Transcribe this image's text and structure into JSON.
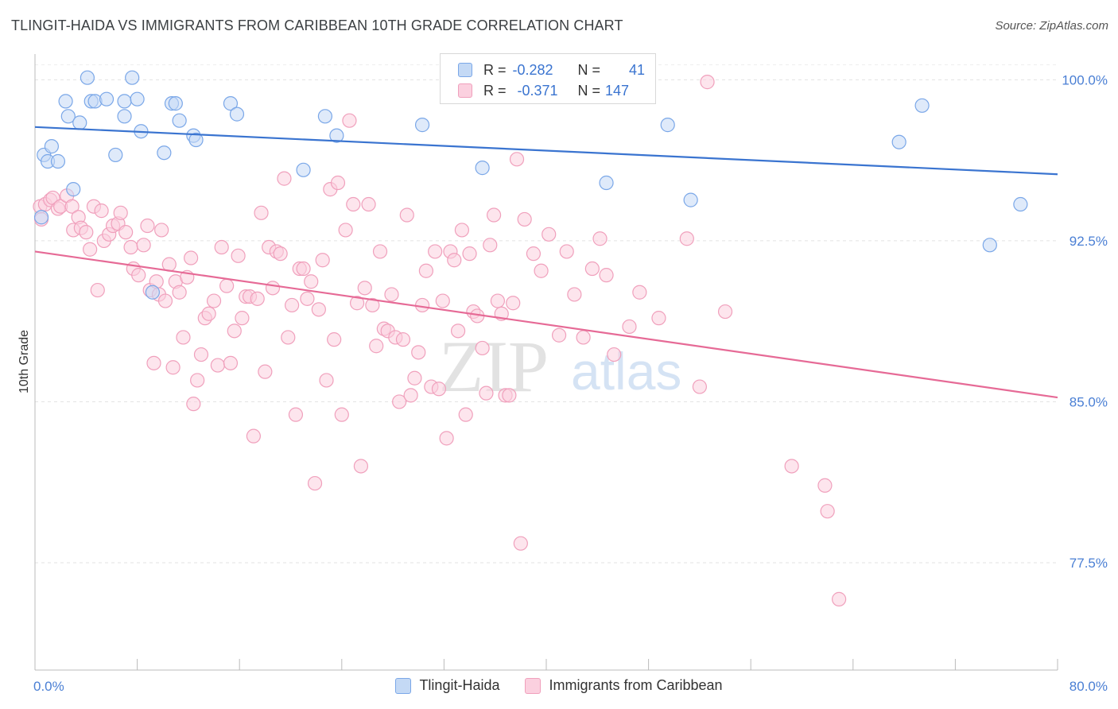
{
  "title": "TLINGIT-HAIDA VS IMMIGRANTS FROM CARIBBEAN 10TH GRADE CORRELATION CHART",
  "source": "Source: ZipAtlas.com",
  "watermark": {
    "zip": "ZIP",
    "atlas": "atlas"
  },
  "legend": {
    "r_label": "R =",
    "n_label": "N =",
    "rows": [
      {
        "r": "-0.282",
        "n": "41",
        "color": "#7aa7e8",
        "fill": "#c4d9f5"
      },
      {
        "r": "-0.371",
        "n": "147",
        "color": "#f0a0bc",
        "fill": "#fbd0df"
      }
    ]
  },
  "chart_data": {
    "type": "scatter",
    "title": "TLINGIT-HAIDA VS IMMIGRANTS FROM CARIBBEAN 10TH GRADE CORRELATION CHART",
    "xlabel": "",
    "ylabel": "10th Grade",
    "xlim": [
      0,
      80
    ],
    "ylim": [
      72.5,
      101.2
    ],
    "x_tick_labels": [
      "0.0%",
      "80.0%"
    ],
    "y_ticks": [
      77.5,
      85.0,
      92.5,
      100.0
    ],
    "y_tick_labels": [
      "77.5%",
      "85.0%",
      "92.5%",
      "100.0%"
    ],
    "grid": true,
    "legend_placement": "bottom",
    "series": [
      {
        "name": "Tlingit-Haida",
        "color": "#7aa7e8",
        "fill": "#c4d9f5",
        "trend": [
          [
            0,
            97.8
          ],
          [
            80,
            95.6
          ]
        ],
        "points": [
          [
            0.5,
            93.6
          ],
          [
            0.7,
            96.5
          ],
          [
            1.0,
            96.2
          ],
          [
            1.3,
            96.9
          ],
          [
            1.8,
            96.2
          ],
          [
            2.4,
            99.0
          ],
          [
            2.6,
            98.3
          ],
          [
            3.0,
            94.9
          ],
          [
            3.5,
            98.0
          ],
          [
            4.1,
            100.1
          ],
          [
            4.4,
            99.0
          ],
          [
            4.7,
            99.0
          ],
          [
            5.6,
            99.1
          ],
          [
            6.3,
            96.5
          ],
          [
            7.0,
            99.0
          ],
          [
            7.0,
            98.3
          ],
          [
            7.6,
            100.1
          ],
          [
            8.0,
            99.1
          ],
          [
            8.3,
            97.6
          ],
          [
            9.2,
            90.1
          ],
          [
            10.1,
            96.6
          ],
          [
            10.7,
            98.9
          ],
          [
            11.0,
            98.9
          ],
          [
            11.3,
            98.1
          ],
          [
            12.4,
            97.4
          ],
          [
            12.6,
            97.2
          ],
          [
            15.3,
            98.9
          ],
          [
            15.8,
            98.4
          ],
          [
            21.0,
            95.8
          ],
          [
            22.7,
            98.3
          ],
          [
            23.6,
            97.4
          ],
          [
            30.3,
            97.9
          ],
          [
            35.0,
            95.9
          ],
          [
            36.6,
            100.1
          ],
          [
            44.7,
            95.2
          ],
          [
            49.5,
            97.9
          ],
          [
            51.3,
            94.4
          ],
          [
            67.6,
            97.1
          ],
          [
            69.4,
            98.8
          ],
          [
            77.1,
            94.2
          ],
          [
            74.7,
            92.3
          ]
        ]
      },
      {
        "name": "Immigrants from Caribbean",
        "color": "#f0a0bc",
        "fill": "#fbd0df",
        "trend": [
          [
            0,
            92.0
          ],
          [
            80,
            85.2
          ]
        ],
        "points": [
          [
            0.4,
            94.1
          ],
          [
            0.5,
            93.5
          ],
          [
            0.8,
            94.2
          ],
          [
            1.2,
            94.4
          ],
          [
            1.4,
            94.5
          ],
          [
            1.8,
            94.0
          ],
          [
            2.0,
            94.1
          ],
          [
            2.5,
            94.6
          ],
          [
            2.9,
            94.1
          ],
          [
            3.0,
            93.0
          ],
          [
            3.4,
            93.6
          ],
          [
            3.6,
            93.1
          ],
          [
            4.0,
            92.9
          ],
          [
            4.3,
            92.1
          ],
          [
            4.6,
            94.1
          ],
          [
            4.9,
            90.2
          ],
          [
            5.2,
            93.9
          ],
          [
            5.4,
            92.5
          ],
          [
            5.8,
            92.8
          ],
          [
            6.1,
            93.2
          ],
          [
            6.5,
            93.3
          ],
          [
            6.7,
            93.8
          ],
          [
            7.1,
            92.9
          ],
          [
            7.5,
            92.2
          ],
          [
            7.7,
            91.2
          ],
          [
            8.1,
            90.9
          ],
          [
            8.5,
            92.3
          ],
          [
            8.8,
            93.2
          ],
          [
            9.0,
            90.2
          ],
          [
            9.3,
            86.8
          ],
          [
            9.5,
            90.6
          ],
          [
            9.7,
            90.0
          ],
          [
            9.9,
            93.0
          ],
          [
            10.2,
            89.7
          ],
          [
            10.5,
            91.4
          ],
          [
            10.8,
            86.6
          ],
          [
            11.0,
            90.6
          ],
          [
            11.3,
            90.1
          ],
          [
            11.6,
            88.0
          ],
          [
            11.9,
            90.8
          ],
          [
            12.2,
            91.7
          ],
          [
            12.4,
            84.9
          ],
          [
            12.7,
            86.0
          ],
          [
            13.0,
            87.2
          ],
          [
            13.3,
            88.9
          ],
          [
            13.6,
            89.1
          ],
          [
            14.0,
            89.7
          ],
          [
            14.3,
            86.7
          ],
          [
            14.6,
            92.2
          ],
          [
            15.0,
            90.4
          ],
          [
            15.3,
            86.8
          ],
          [
            15.6,
            88.3
          ],
          [
            15.9,
            91.8
          ],
          [
            16.2,
            88.9
          ],
          [
            16.5,
            89.9
          ],
          [
            16.8,
            89.9
          ],
          [
            17.1,
            83.4
          ],
          [
            17.4,
            89.8
          ],
          [
            17.7,
            93.8
          ],
          [
            18.0,
            86.4
          ],
          [
            18.3,
            92.2
          ],
          [
            18.6,
            90.3
          ],
          [
            18.9,
            92.0
          ],
          [
            19.2,
            91.9
          ],
          [
            19.5,
            95.4
          ],
          [
            19.8,
            88.0
          ],
          [
            20.1,
            89.5
          ],
          [
            20.4,
            84.4
          ],
          [
            20.7,
            91.2
          ],
          [
            21.0,
            91.2
          ],
          [
            21.3,
            89.8
          ],
          [
            21.6,
            90.6
          ],
          [
            21.9,
            81.2
          ],
          [
            22.2,
            89.3
          ],
          [
            22.5,
            91.6
          ],
          [
            22.8,
            86.0
          ],
          [
            23.1,
            94.9
          ],
          [
            23.4,
            87.9
          ],
          [
            23.7,
            95.2
          ],
          [
            24.0,
            84.4
          ],
          [
            24.3,
            93.0
          ],
          [
            24.6,
            98.1
          ],
          [
            24.9,
            94.2
          ],
          [
            25.2,
            89.6
          ],
          [
            25.5,
            82.0
          ],
          [
            25.8,
            90.3
          ],
          [
            26.1,
            94.2
          ],
          [
            26.4,
            89.5
          ],
          [
            26.7,
            87.6
          ],
          [
            27.0,
            92.0
          ],
          [
            27.3,
            88.4
          ],
          [
            27.6,
            88.3
          ],
          [
            27.9,
            90.0
          ],
          [
            28.2,
            88.0
          ],
          [
            28.5,
            85.0
          ],
          [
            28.8,
            87.9
          ],
          [
            29.1,
            93.7
          ],
          [
            29.4,
            85.3
          ],
          [
            29.7,
            86.1
          ],
          [
            30.0,
            87.3
          ],
          [
            30.3,
            89.5
          ],
          [
            30.6,
            91.1
          ],
          [
            31.0,
            85.7
          ],
          [
            31.3,
            92.0
          ],
          [
            31.6,
            85.6
          ],
          [
            31.9,
            89.7
          ],
          [
            32.2,
            83.3
          ],
          [
            32.5,
            92.0
          ],
          [
            32.8,
            91.6
          ],
          [
            33.1,
            88.3
          ],
          [
            33.4,
            93.0
          ],
          [
            33.7,
            84.4
          ],
          [
            34.0,
            91.9
          ],
          [
            34.3,
            89.2
          ],
          [
            34.6,
            89.0
          ],
          [
            35.0,
            87.5
          ],
          [
            35.3,
            85.4
          ],
          [
            35.6,
            92.3
          ],
          [
            35.9,
            93.7
          ],
          [
            36.2,
            89.7
          ],
          [
            36.5,
            89.1
          ],
          [
            36.8,
            85.3
          ],
          [
            37.1,
            85.3
          ],
          [
            37.4,
            89.6
          ],
          [
            37.7,
            96.3
          ],
          [
            38.0,
            78.4
          ],
          [
            38.3,
            93.5
          ],
          [
            39.0,
            91.9
          ],
          [
            39.6,
            91.1
          ],
          [
            40.2,
            92.8
          ],
          [
            41.0,
            88.1
          ],
          [
            41.6,
            92.0
          ],
          [
            42.2,
            90.0
          ],
          [
            42.9,
            88.0
          ],
          [
            43.6,
            91.2
          ],
          [
            44.2,
            92.6
          ],
          [
            44.7,
            90.9
          ],
          [
            45.3,
            87.2
          ],
          [
            46.5,
            88.5
          ],
          [
            47.3,
            90.1
          ],
          [
            48.8,
            88.9
          ],
          [
            51.0,
            92.6
          ],
          [
            52.0,
            85.7
          ],
          [
            54.0,
            89.2
          ],
          [
            59.2,
            82.0
          ],
          [
            61.8,
            81.1
          ],
          [
            62.0,
            79.9
          ],
          [
            62.9,
            75.8
          ],
          [
            52.6,
            99.9
          ]
        ]
      }
    ]
  },
  "bottom_legend": [
    {
      "label": "Tlingit-Haida",
      "color": "#7aa7e8",
      "fill": "#c4d9f5"
    },
    {
      "label": "Immigrants from Caribbean",
      "color": "#f0a0bc",
      "fill": "#fbd0df"
    }
  ]
}
